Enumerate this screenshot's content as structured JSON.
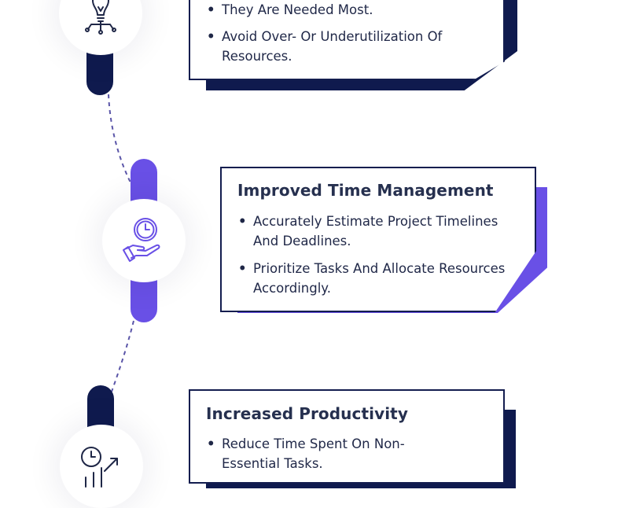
{
  "colors": {
    "navy": "#0f1a4e",
    "purple": "#6950e6",
    "text": "#26304f"
  },
  "cards": [
    {
      "title": "",
      "icon": "lightbulb-icon",
      "bullets": [
        "They Are Needed Most.",
        "Avoid Over- Or Underutilization Of Resources."
      ]
    },
    {
      "title": "Improved Time Management",
      "icon": "clock-hand-icon",
      "bullets": [
        "Accurately Estimate Project Timelines And Deadlines.",
        "Prioritize Tasks And Allocate Resources Accordingly."
      ]
    },
    {
      "title": "Increased Productivity",
      "icon": "clock-growth-chart-icon",
      "bullets": [
        "Reduce Time Spent On Non-Essential Tasks."
      ]
    }
  ]
}
